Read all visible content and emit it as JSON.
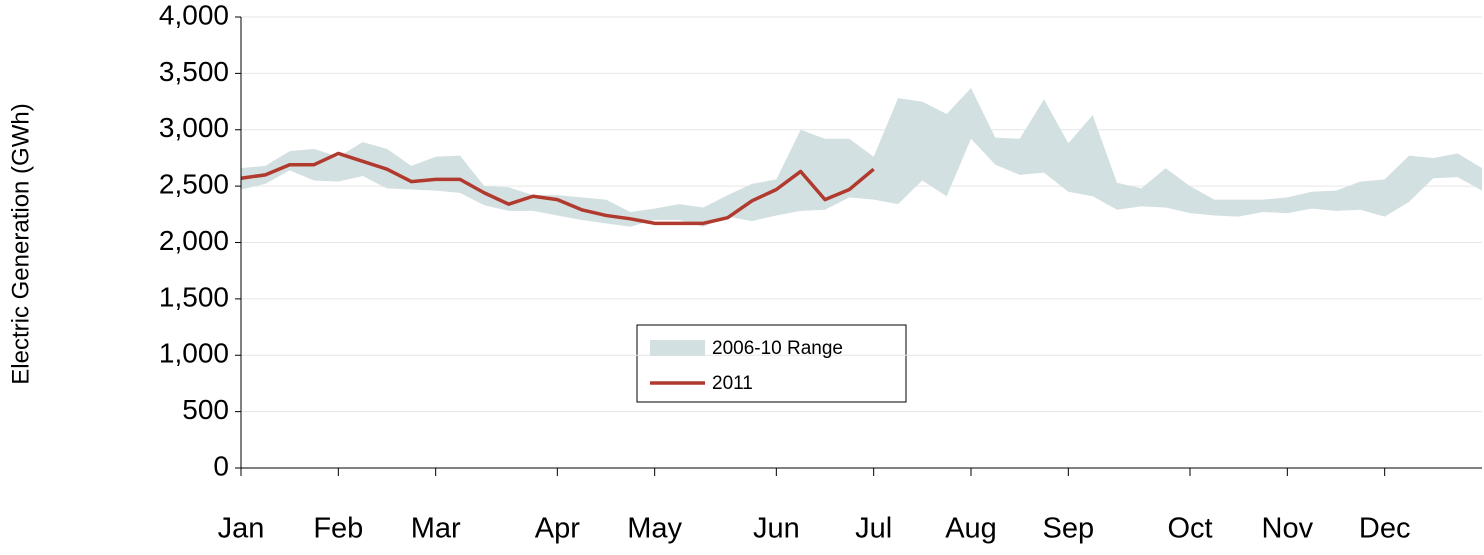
{
  "chart_data": {
    "type": "line",
    "y_label": "Electric Generation (GWh)",
    "categories": [
      "Jan",
      null,
      null,
      null,
      "Feb",
      null,
      null,
      null,
      "Mar",
      null,
      null,
      null,
      null,
      "Apr",
      null,
      null,
      null,
      "May",
      null,
      null,
      null,
      null,
      "Jun",
      null,
      null,
      null,
      "Jul",
      null,
      null,
      null,
      "Aug",
      null,
      null,
      null,
      "Sep",
      null,
      null,
      null,
      null,
      "Oct",
      null,
      null,
      null,
      "Nov",
      null,
      null,
      null,
      "Dec",
      null,
      null,
      null,
      null
    ],
    "series": [
      {
        "name": "2006-10 Range",
        "color": "#d3e0e1",
        "values": [
          2660,
          2680,
          2810,
          2830,
          2760,
          2890,
          2830,
          2680,
          2760,
          2770,
          2500,
          2490,
          2420,
          2420,
          2400,
          2380,
          2270,
          2300,
          2340,
          2310,
          2420,
          2520,
          2560,
          3000,
          2920,
          2920,
          2760,
          3280,
          3250,
          3140,
          3370,
          2930,
          2920,
          3270,
          2880,
          3130,
          2530,
          2480,
          2660,
          2500,
          2380,
          2380,
          2380,
          2400,
          2450,
          2460,
          2540,
          2560,
          2770,
          2750,
          2790,
          2660
        ],
        "low": [
          2470,
          2520,
          2640,
          2550,
          2540,
          2590,
          2480,
          2470,
          2460,
          2440,
          2330,
          2280,
          2280,
          2240,
          2200,
          2170,
          2140,
          2200,
          2200,
          2140,
          2230,
          2190,
          2240,
          2280,
          2290,
          2400,
          2380,
          2340,
          2550,
          2410,
          2920,
          2690,
          2600,
          2620,
          2450,
          2410,
          2290,
          2320,
          2310,
          2260,
          2240,
          2230,
          2270,
          2260,
          2300,
          2280,
          2290,
          2230,
          2360,
          2570,
          2580,
          2460
        ]
      },
      {
        "name": "2011",
        "color": "#b03a2e",
        "values": [
          2570,
          2600,
          2690,
          2690,
          2790,
          2720,
          2650,
          2540,
          2560,
          2560,
          2440,
          2340,
          2410,
          2380,
          2290,
          2240,
          2210,
          2170,
          2170,
          2170,
          2220,
          2370,
          2470,
          2630,
          2380,
          2470,
          2650,
          null,
          null,
          null,
          null,
          null,
          null,
          null,
          null,
          null,
          null,
          null,
          null,
          null,
          null,
          null,
          null,
          null,
          null,
          null,
          null,
          null,
          null,
          null,
          null,
          null
        ]
      }
    ],
    "ylim": [
      0,
      4000
    ],
    "yticks": [
      0,
      500,
      {
        "value": 1000,
        "label": "1,000"
      },
      {
        "value": 1500,
        "label": "1,500"
      },
      {
        "value": 2000,
        "label": "2,000"
      },
      {
        "value": 2500,
        "label": "2,500"
      },
      {
        "value": 3000,
        "label": "3,000"
      },
      {
        "value": 3500,
        "label": "3,500"
      },
      {
        "value": 4000,
        "label": "4,000"
      }
    ],
    "grid": true
  }
}
